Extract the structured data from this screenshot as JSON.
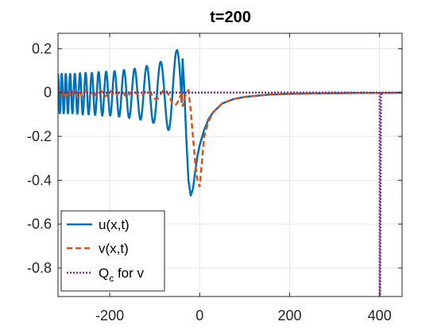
{
  "chart_data": {
    "type": "line",
    "title": "t=200",
    "xlabel": "",
    "ylabel": "",
    "xlim": [
      -315,
      450
    ],
    "ylim": [
      -0.93,
      0.27
    ],
    "xticks": [
      -200,
      0,
      200,
      400
    ],
    "xtick_labels": [
      "-200",
      "0",
      "200",
      "400"
    ],
    "yticks": [
      0.2,
      0,
      -0.2,
      -0.4,
      -0.6,
      -0.8
    ],
    "ytick_labels": [
      "0.2",
      "0",
      "-0.2",
      "-0.4",
      "-0.6",
      "-0.8"
    ],
    "grid": true,
    "legend_location": "bottom-left",
    "series": [
      {
        "name": "u(x,t)",
        "color": "#0072BD",
        "style": "solid",
        "x": [
          -315,
          -300,
          -280,
          -260,
          -240,
          -220,
          -200,
          -180,
          -160,
          -140,
          -120,
          -100,
          -80,
          -60,
          -50,
          -40,
          -35,
          -30,
          -25,
          -20,
          -15,
          -10,
          -5,
          0,
          10,
          20,
          30,
          50,
          75,
          100,
          150,
          200,
          250,
          300,
          350,
          400,
          450
        ],
        "envelope": [
          0.09,
          0.09,
          0.09,
          0.095,
          0.095,
          0.1,
          0.1,
          0.105,
          0.11,
          0.115,
          0.125,
          0.135,
          0.15,
          0.18,
          0.2,
          0.22
        ],
        "y": [
          0.0,
          0.0,
          0.0,
          0.0,
          0.0,
          0.0,
          0.0,
          0.0,
          0.0,
          0.0,
          0.0,
          0.0,
          0.0,
          0.0,
          0.0,
          0.22,
          0.05,
          -0.2,
          -0.4,
          -0.47,
          -0.44,
          -0.36,
          -0.29,
          -0.24,
          -0.17,
          -0.12,
          -0.09,
          -0.05,
          -0.03,
          -0.02,
          -0.01,
          -0.006,
          -0.004,
          -0.003,
          -0.002,
          -0.002,
          -0.001
        ]
      },
      {
        "name": "v(x,t)",
        "color": "#D95319",
        "style": "dashed",
        "x": [
          -315,
          -200,
          -120,
          -80,
          -60,
          -40,
          -30,
          -25,
          -20,
          -15,
          -10,
          -5,
          0,
          10,
          20,
          30,
          50,
          75,
          100,
          150,
          200,
          250,
          300,
          350,
          400,
          450
        ],
        "y": [
          0.0,
          0.0,
          0.0,
          -0.03,
          -0.05,
          -0.08,
          0.0,
          0.01,
          -0.08,
          -0.2,
          -0.32,
          -0.4,
          -0.43,
          -0.2,
          -0.13,
          -0.09,
          -0.05,
          -0.03,
          -0.02,
          -0.01,
          -0.006,
          -0.004,
          -0.003,
          -0.002,
          -0.002,
          -0.001
        ]
      },
      {
        "name": "Q_c for v",
        "color": "#7E2F8E",
        "style": "dotted",
        "x": [
          -315,
          399,
          400,
          400,
          401,
          403,
          404,
          450
        ],
        "y": [
          0.0,
          0.0,
          -0.02,
          -0.93,
          -0.93,
          -0.02,
          0.0,
          0.0
        ]
      }
    ],
    "legend": {
      "u": "u(x,t)",
      "v": "v(x,t)",
      "q_main": "Q",
      "q_sub": "c",
      "q_rest": " for v"
    }
  }
}
